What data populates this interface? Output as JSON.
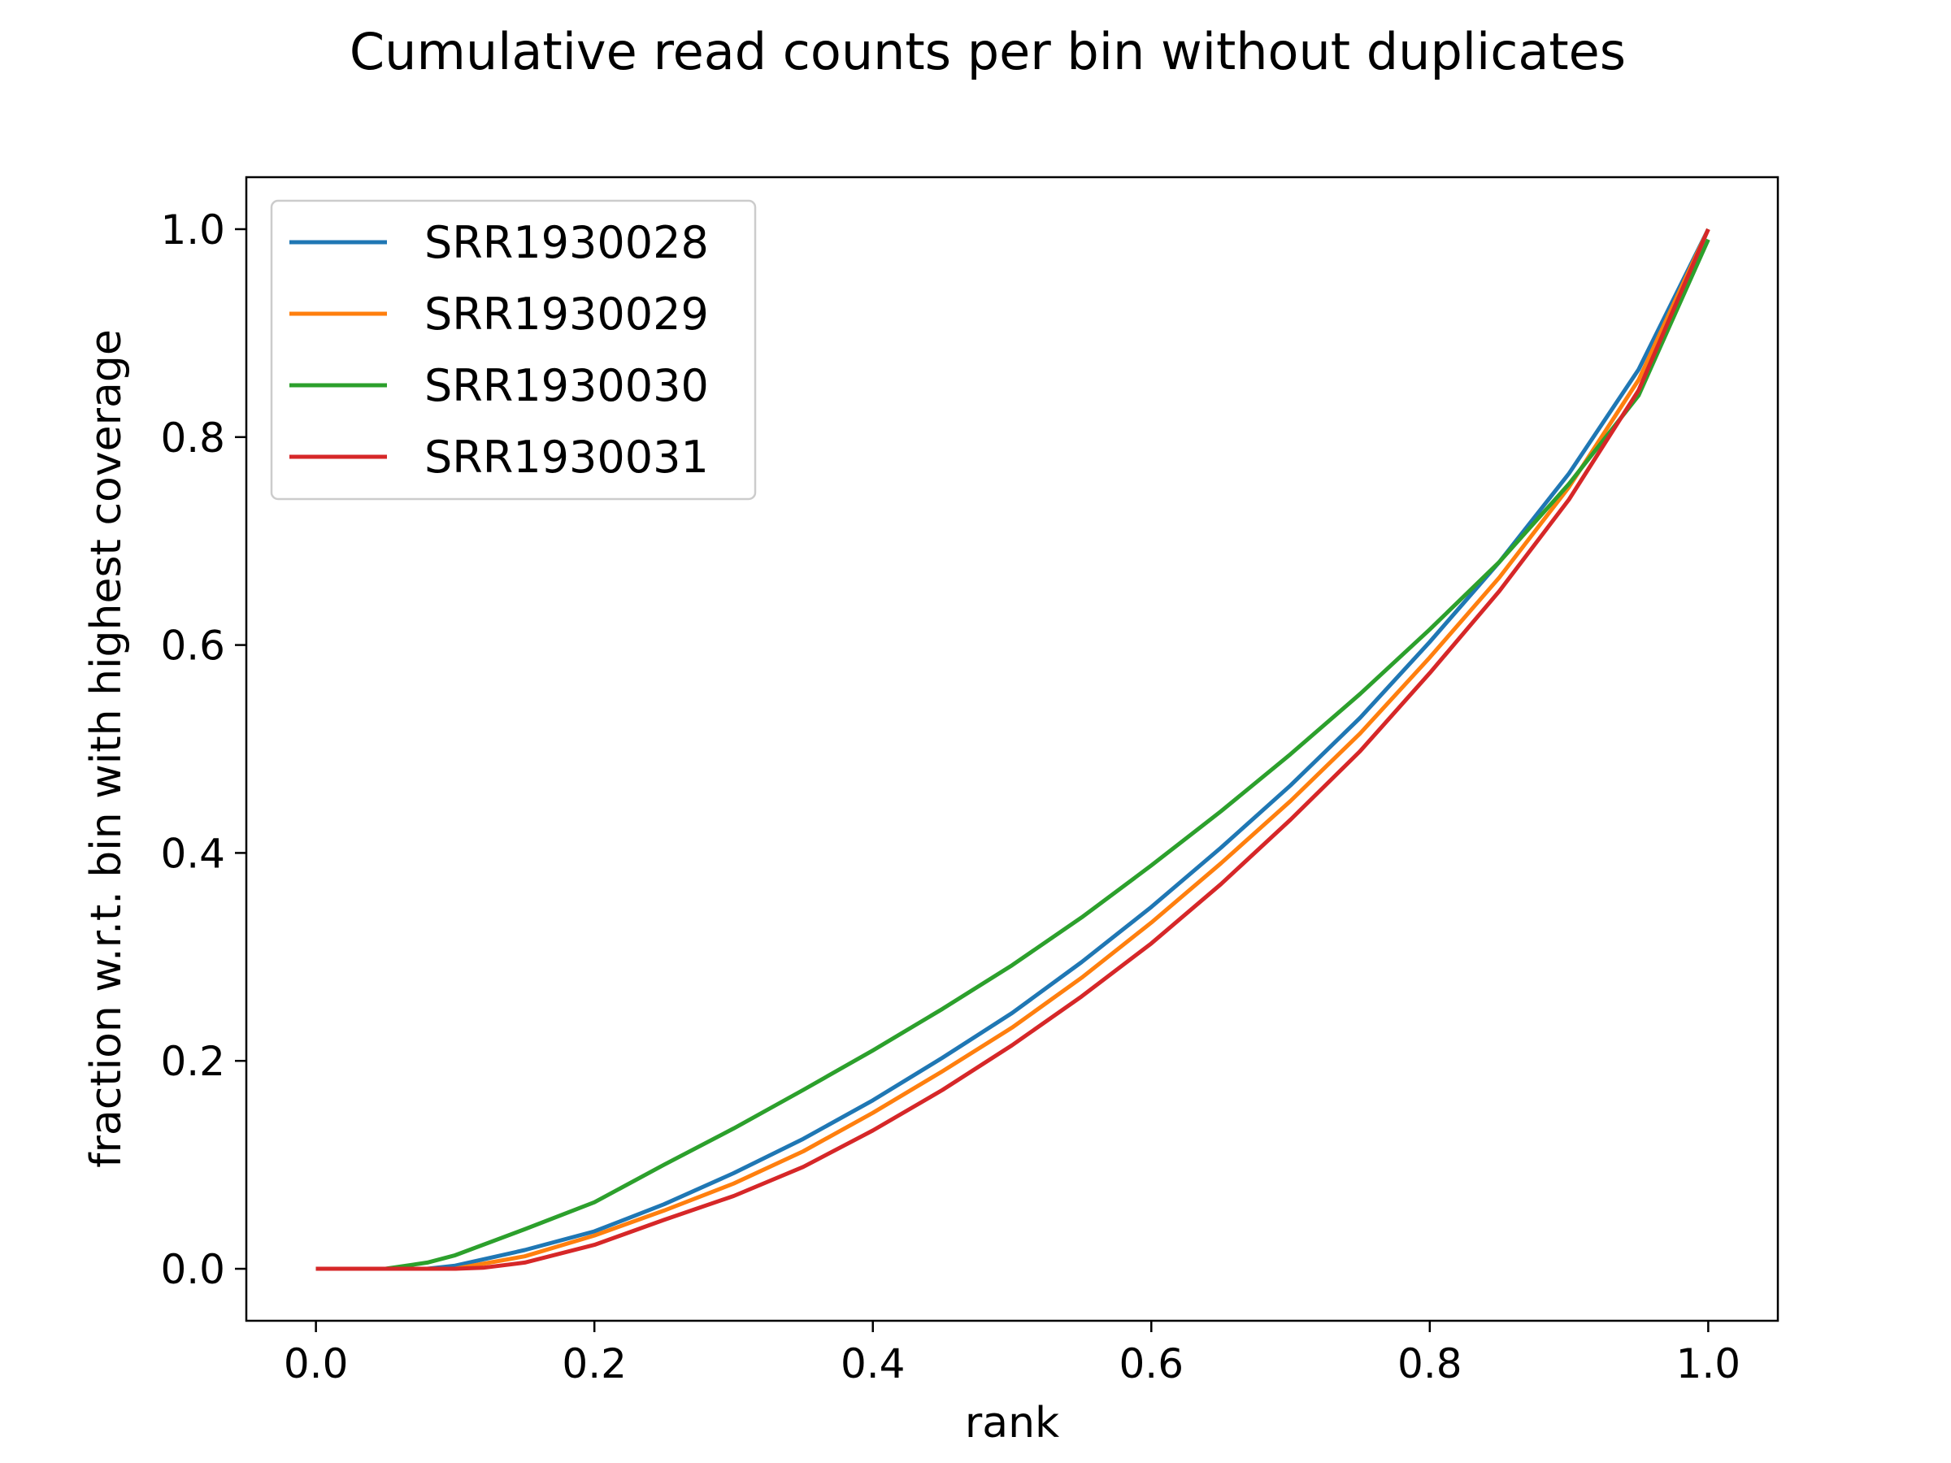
{
  "chart_data": {
    "type": "line",
    "title": "Cumulative read counts per bin without duplicates",
    "xlabel": "rank",
    "ylabel": "fraction w.r.t. bin with highest coverage",
    "xlim": [
      -0.05,
      1.05
    ],
    "ylim": [
      -0.05,
      1.05
    ],
    "xticks": [
      0.0,
      0.2,
      0.4,
      0.6,
      0.8,
      1.0
    ],
    "xtick_labels": [
      "0.0",
      "0.2",
      "0.4",
      "0.6",
      "0.8",
      "1.0"
    ],
    "yticks": [
      0.0,
      0.2,
      0.4,
      0.6,
      0.8,
      1.0
    ],
    "ytick_labels": [
      "0.0",
      "0.2",
      "0.4",
      "0.6",
      "0.8",
      "1.0"
    ],
    "grid": false,
    "legend_position": "top-left",
    "series": [
      {
        "name": "SRR1930028",
        "color": "#1f77b4",
        "x": [
          0.0,
          0.05,
          0.08,
          0.1,
          0.15,
          0.2,
          0.25,
          0.3,
          0.35,
          0.4,
          0.45,
          0.5,
          0.55,
          0.6,
          0.65,
          0.7,
          0.75,
          0.8,
          0.85,
          0.9,
          0.95,
          1.0
        ],
        "y": [
          0.0,
          0.0,
          0.0,
          0.003,
          0.018,
          0.036,
          0.062,
          0.092,
          0.125,
          0.162,
          0.203,
          0.246,
          0.295,
          0.348,
          0.405,
          0.465,
          0.53,
          0.603,
          0.68,
          0.765,
          0.865,
          1.0
        ]
      },
      {
        "name": "SRR1930029",
        "color": "#ff7f0e",
        "x": [
          0.0,
          0.05,
          0.08,
          0.1,
          0.15,
          0.2,
          0.25,
          0.3,
          0.35,
          0.4,
          0.45,
          0.5,
          0.55,
          0.6,
          0.65,
          0.7,
          0.75,
          0.8,
          0.85,
          0.9,
          0.95,
          1.0
        ],
        "y": [
          0.0,
          0.0,
          0.0,
          0.0,
          0.012,
          0.032,
          0.056,
          0.082,
          0.113,
          0.15,
          0.19,
          0.232,
          0.28,
          0.333,
          0.39,
          0.45,
          0.515,
          0.588,
          0.665,
          0.752,
          0.855,
          1.0
        ]
      },
      {
        "name": "SRR1930030",
        "color": "#2ca02c",
        "x": [
          0.0,
          0.05,
          0.08,
          0.1,
          0.15,
          0.2,
          0.25,
          0.3,
          0.35,
          0.4,
          0.45,
          0.5,
          0.55,
          0.6,
          0.65,
          0.7,
          0.75,
          0.8,
          0.85,
          0.9,
          0.95,
          1.0
        ],
        "y": [
          0.0,
          0.0,
          0.006,
          0.013,
          0.038,
          0.064,
          0.1,
          0.135,
          0.172,
          0.21,
          0.25,
          0.292,
          0.338,
          0.388,
          0.44,
          0.495,
          0.553,
          0.615,
          0.68,
          0.755,
          0.84,
          0.99
        ]
      },
      {
        "name": "SRR1930031",
        "color": "#d62728",
        "x": [
          0.0,
          0.05,
          0.1,
          0.12,
          0.15,
          0.2,
          0.25,
          0.3,
          0.35,
          0.4,
          0.45,
          0.5,
          0.55,
          0.6,
          0.65,
          0.7,
          0.75,
          0.8,
          0.85,
          0.9,
          0.95,
          1.0
        ],
        "y": [
          0.0,
          0.0,
          0.0,
          0.001,
          0.006,
          0.023,
          0.047,
          0.07,
          0.098,
          0.133,
          0.172,
          0.215,
          0.262,
          0.313,
          0.37,
          0.432,
          0.498,
          0.573,
          0.652,
          0.74,
          0.845,
          1.0
        ]
      }
    ]
  }
}
